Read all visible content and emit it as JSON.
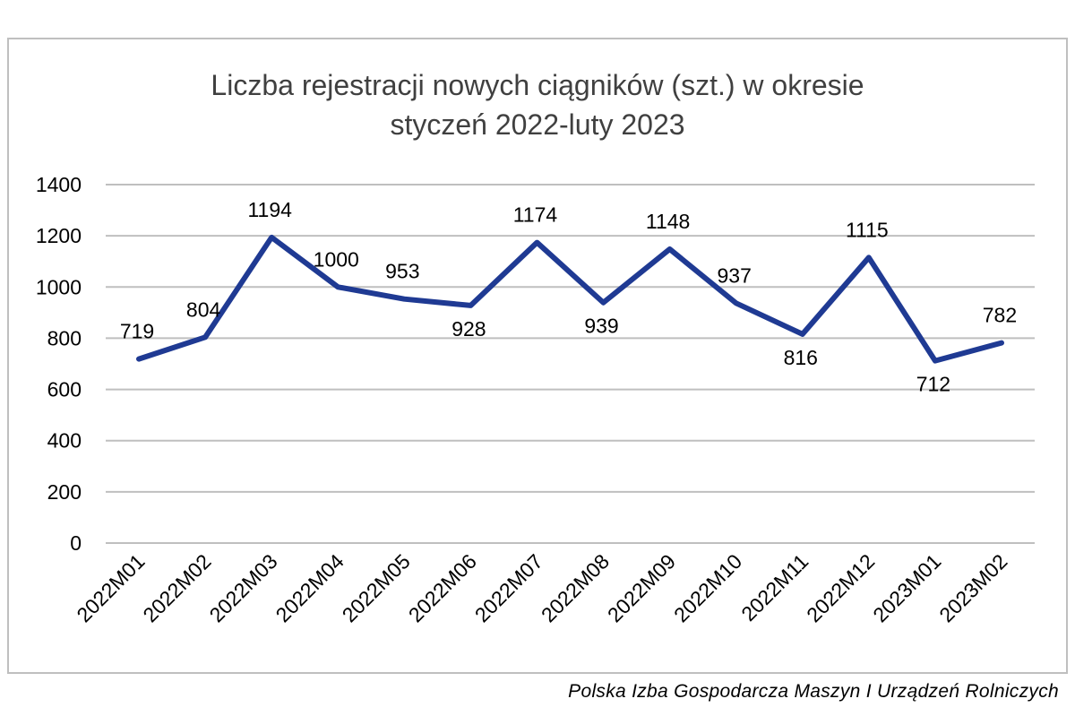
{
  "source": "Polska Izba Gospodarcza Maszyn I Urządzeń Rolniczych",
  "chart_data": {
    "type": "line",
    "title_lines": [
      "Liczba rejestracji nowych ciągników (szt.) w okresie",
      "styczeń 2022-luty 2023"
    ],
    "categories": [
      "2022M01",
      "2022M02",
      "2022M03",
      "2022M04",
      "2022M05",
      "2022M06",
      "2022M07",
      "2022M08",
      "2022M09",
      "2022M10",
      "2022M11",
      "2022M12",
      "2023M01",
      "2023M02"
    ],
    "series": [
      {
        "values": [
          719,
          804,
          1194,
          1000,
          953,
          928,
          1174,
          939,
          1148,
          937,
          816,
          1115,
          712,
          782
        ]
      }
    ],
    "ylim": [
      0,
      1400
    ],
    "yticks": [
      0,
      200,
      400,
      600,
      800,
      1000,
      1200,
      1400
    ],
    "grid": true,
    "data_labels": true,
    "line_color": "#1f3a93",
    "grid_color": "#bfbfbf"
  }
}
